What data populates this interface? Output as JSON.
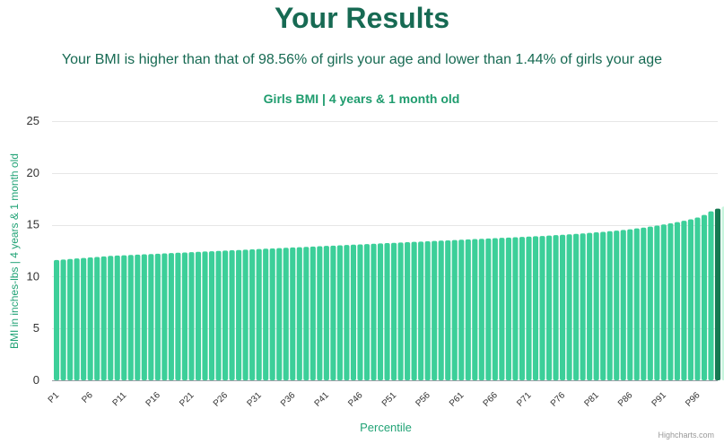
{
  "page": {
    "title": "Your Results",
    "summary": "Your BMI is higher than that of 98.56% of girls your age and lower than 1.44% of girls your age",
    "credits": "Highcharts.com"
  },
  "colors": {
    "bar": "#3ccf99",
    "highlight": "#167a52",
    "above": "#c8f5dd",
    "title_text": "#176a53",
    "chart_title": "#1f9c6e",
    "axis_label": "#22a376"
  },
  "chart_data": {
    "type": "bar",
    "title": "Girls BMI | 4 years & 1 month old",
    "xlabel": "Percentile",
    "ylabel": "BMI in inches-lbs | 4 years & 1 month old",
    "ylim": [
      0,
      25
    ],
    "yticks": [
      0,
      5,
      10,
      15,
      20,
      25
    ],
    "grid": true,
    "legend": "none",
    "categories": [
      "P1",
      "P2",
      "P3",
      "P4",
      "P5",
      "P6",
      "P7",
      "P8",
      "P9",
      "P10",
      "P11",
      "P12",
      "P13",
      "P14",
      "P15",
      "P16",
      "P17",
      "P18",
      "P19",
      "P20",
      "P21",
      "P22",
      "P23",
      "P24",
      "P25",
      "P26",
      "P27",
      "P28",
      "P29",
      "P30",
      "P31",
      "P32",
      "P33",
      "P34",
      "P35",
      "P36",
      "P37",
      "P38",
      "P39",
      "P40",
      "P41",
      "P42",
      "P43",
      "P44",
      "P45",
      "P46",
      "P47",
      "P48",
      "P49",
      "P50",
      "P51",
      "P52",
      "P53",
      "P54",
      "P55",
      "P56",
      "P57",
      "P58",
      "P59",
      "P60",
      "P61",
      "P62",
      "P63",
      "P64",
      "P65",
      "P66",
      "P67",
      "P68",
      "P69",
      "P70",
      "P71",
      "P72",
      "P73",
      "P74",
      "P75",
      "P76",
      "P77",
      "P78",
      "P79",
      "P80",
      "P81",
      "P82",
      "P83",
      "P84",
      "P85",
      "P86",
      "P87",
      "P88",
      "P89",
      "P90",
      "P91",
      "P92",
      "P93",
      "P94",
      "P95",
      "P96",
      "P97",
      "P98",
      "P99",
      "P100"
    ],
    "tick_labels": [
      "P1",
      "P6",
      "P11",
      "P16",
      "P21",
      "P26",
      "P31",
      "P36",
      "P41",
      "P46",
      "P51",
      "P56",
      "P61",
      "P66",
      "P71",
      "P76",
      "P81",
      "P86",
      "P91",
      "P96"
    ],
    "values": [
      11.6,
      11.65,
      11.7,
      11.75,
      11.8,
      11.85,
      11.9,
      11.95,
      12.0,
      12.03,
      12.06,
      12.09,
      12.12,
      12.15,
      12.18,
      12.21,
      12.24,
      12.27,
      12.3,
      12.33,
      12.36,
      12.39,
      12.42,
      12.45,
      12.48,
      12.51,
      12.54,
      12.57,
      12.6,
      12.63,
      12.66,
      12.69,
      12.72,
      12.75,
      12.78,
      12.81,
      12.84,
      12.87,
      12.9,
      12.93,
      12.96,
      12.99,
      13.02,
      13.05,
      13.08,
      13.11,
      13.14,
      13.17,
      13.2,
      13.23,
      13.26,
      13.29,
      13.32,
      13.35,
      13.38,
      13.41,
      13.44,
      13.47,
      13.5,
      13.53,
      13.56,
      13.59,
      13.62,
      13.65,
      13.68,
      13.71,
      13.74,
      13.77,
      13.8,
      13.83,
      13.86,
      13.89,
      13.92,
      13.96,
      14.0,
      14.04,
      14.08,
      14.12,
      14.17,
      14.22,
      14.27,
      14.32,
      14.38,
      14.44,
      14.5,
      14.57,
      14.65,
      14.73,
      14.82,
      14.92,
      15.03,
      15.14,
      15.26,
      15.39,
      15.53,
      15.7,
      15.95,
      16.3,
      16.55,
      16.75
    ],
    "highlight_index": 98,
    "above_start_index": 99
  }
}
